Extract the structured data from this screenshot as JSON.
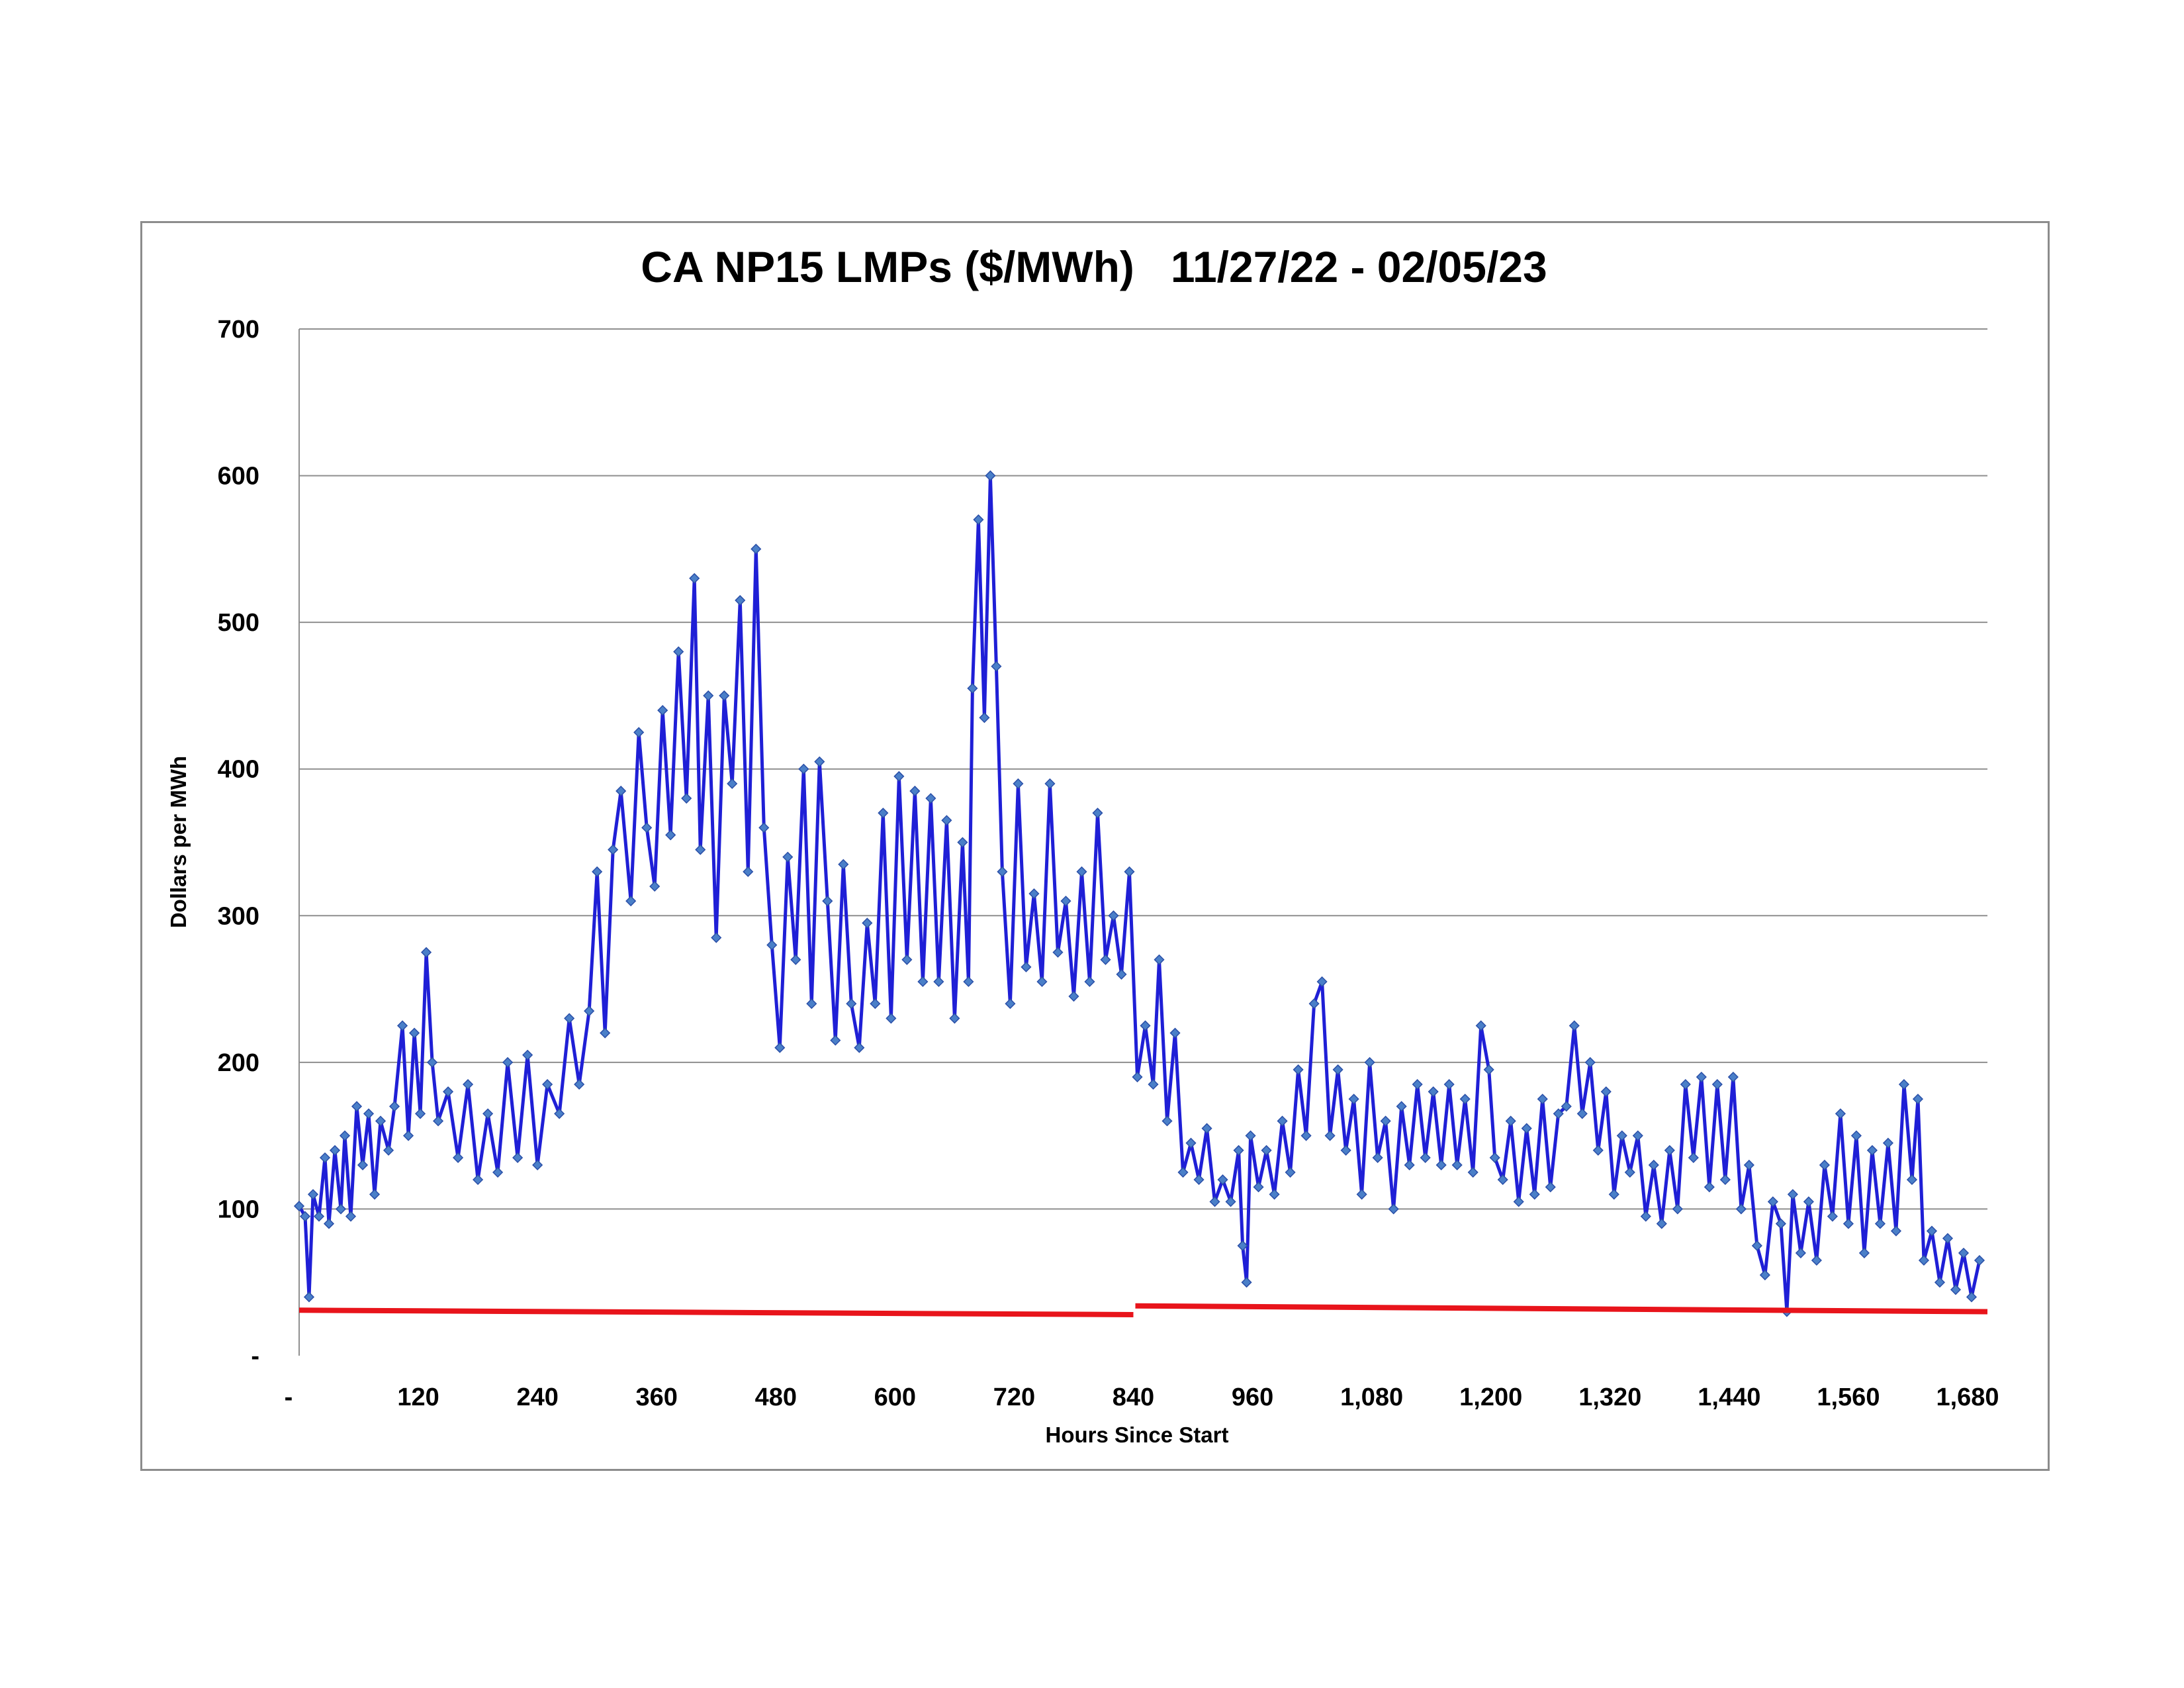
{
  "chart_data": {
    "type": "line",
    "title": "CA NP15 LMPs ($/MWh)   11/27/22 - 02/05/23",
    "xlabel": "Hours Since Start",
    "ylabel": "Dollars per MWh",
    "xlim": [
      0,
      1700
    ],
    "ylim": [
      0,
      700
    ],
    "x_ticks": [
      0,
      120,
      240,
      360,
      480,
      600,
      720,
      840,
      960,
      1080,
      1200,
      1320,
      1440,
      1560,
      1680
    ],
    "x_tick_labels": [
      "-",
      "120",
      "240",
      "360",
      "480",
      "600",
      "720",
      "840",
      "960",
      "1,080",
      "1,200",
      "1,320",
      "1,440",
      "1,560",
      "1,680"
    ],
    "y_ticks": [
      0,
      100,
      200,
      300,
      400,
      500,
      600,
      700
    ],
    "y_tick_labels": [
      "-",
      "100",
      "200",
      "300",
      "400",
      "500",
      "600",
      "700"
    ],
    "grid": "horizontal",
    "legend": "none",
    "colors": {
      "price_line": "#1f1fd6",
      "price_marker": "#4a7fc8",
      "reference_line": "#e8141b",
      "grid": "#8f8f8f",
      "frame": "#8c8c8c"
    },
    "series": [
      {
        "style": "line-with-diamond-markers",
        "color": "#1f1fd6",
        "points": [
          [
            0,
            102
          ],
          [
            6,
            95
          ],
          [
            10,
            40
          ],
          [
            14,
            110
          ],
          [
            20,
            95
          ],
          [
            26,
            135
          ],
          [
            30,
            90
          ],
          [
            36,
            140
          ],
          [
            42,
            100
          ],
          [
            46,
            150
          ],
          [
            52,
            95
          ],
          [
            58,
            170
          ],
          [
            64,
            130
          ],
          [
            70,
            165
          ],
          [
            76,
            110
          ],
          [
            82,
            160
          ],
          [
            90,
            140
          ],
          [
            96,
            170
          ],
          [
            104,
            225
          ],
          [
            110,
            150
          ],
          [
            116,
            220
          ],
          [
            122,
            165
          ],
          [
            128,
            275
          ],
          [
            134,
            200
          ],
          [
            140,
            160
          ],
          [
            150,
            180
          ],
          [
            160,
            135
          ],
          [
            170,
            185
          ],
          [
            180,
            120
          ],
          [
            190,
            165
          ],
          [
            200,
            125
          ],
          [
            210,
            200
          ],
          [
            220,
            135
          ],
          [
            230,
            205
          ],
          [
            240,
            130
          ],
          [
            250,
            185
          ],
          [
            262,
            165
          ],
          [
            272,
            230
          ],
          [
            282,
            185
          ],
          [
            292,
            235
          ],
          [
            300,
            330
          ],
          [
            308,
            220
          ],
          [
            316,
            345
          ],
          [
            324,
            385
          ],
          [
            334,
            310
          ],
          [
            342,
            425
          ],
          [
            350,
            360
          ],
          [
            358,
            320
          ],
          [
            366,
            440
          ],
          [
            374,
            355
          ],
          [
            382,
            480
          ],
          [
            390,
            380
          ],
          [
            398,
            530
          ],
          [
            404,
            345
          ],
          [
            412,
            450
          ],
          [
            420,
            285
          ],
          [
            428,
            450
          ],
          [
            436,
            390
          ],
          [
            444,
            515
          ],
          [
            452,
            330
          ],
          [
            460,
            550
          ],
          [
            468,
            360
          ],
          [
            476,
            280
          ],
          [
            484,
            210
          ],
          [
            492,
            340
          ],
          [
            500,
            270
          ],
          [
            508,
            400
          ],
          [
            516,
            240
          ],
          [
            524,
            405
          ],
          [
            532,
            310
          ],
          [
            540,
            215
          ],
          [
            548,
            335
          ],
          [
            556,
            240
          ],
          [
            564,
            210
          ],
          [
            572,
            295
          ],
          [
            580,
            240
          ],
          [
            588,
            370
          ],
          [
            596,
            230
          ],
          [
            604,
            395
          ],
          [
            612,
            270
          ],
          [
            620,
            385
          ],
          [
            628,
            255
          ],
          [
            636,
            380
          ],
          [
            644,
            255
          ],
          [
            652,
            365
          ],
          [
            660,
            230
          ],
          [
            668,
            350
          ],
          [
            674,
            255
          ],
          [
            678,
            455
          ],
          [
            684,
            570
          ],
          [
            690,
            435
          ],
          [
            696,
            600
          ],
          [
            702,
            470
          ],
          [
            708,
            330
          ],
          [
            716,
            240
          ],
          [
            724,
            390
          ],
          [
            732,
            265
          ],
          [
            740,
            315
          ],
          [
            748,
            255
          ],
          [
            756,
            390
          ],
          [
            764,
            275
          ],
          [
            772,
            310
          ],
          [
            780,
            245
          ],
          [
            788,
            330
          ],
          [
            796,
            255
          ],
          [
            804,
            370
          ],
          [
            812,
            270
          ],
          [
            820,
            300
          ],
          [
            828,
            260
          ],
          [
            836,
            330
          ],
          [
            844,
            190
          ],
          [
            852,
            225
          ],
          [
            860,
            185
          ],
          [
            866,
            270
          ],
          [
            874,
            160
          ],
          [
            882,
            220
          ],
          [
            890,
            125
          ],
          [
            898,
            145
          ],
          [
            906,
            120
          ],
          [
            914,
            155
          ],
          [
            922,
            105
          ],
          [
            930,
            120
          ],
          [
            938,
            105
          ],
          [
            946,
            140
          ],
          [
            950,
            75
          ],
          [
            954,
            50
          ],
          [
            958,
            150
          ],
          [
            966,
            115
          ],
          [
            974,
            140
          ],
          [
            982,
            110
          ],
          [
            990,
            160
          ],
          [
            998,
            125
          ],
          [
            1006,
            195
          ],
          [
            1014,
            150
          ],
          [
            1022,
            240
          ],
          [
            1030,
            255
          ],
          [
            1038,
            150
          ],
          [
            1046,
            195
          ],
          [
            1054,
            140
          ],
          [
            1062,
            175
          ],
          [
            1070,
            110
          ],
          [
            1078,
            200
          ],
          [
            1086,
            135
          ],
          [
            1094,
            160
          ],
          [
            1102,
            100
          ],
          [
            1110,
            170
          ],
          [
            1118,
            130
          ],
          [
            1126,
            185
          ],
          [
            1134,
            135
          ],
          [
            1142,
            180
          ],
          [
            1150,
            130
          ],
          [
            1158,
            185
          ],
          [
            1166,
            130
          ],
          [
            1174,
            175
          ],
          [
            1182,
            125
          ],
          [
            1190,
            225
          ],
          [
            1198,
            195
          ],
          [
            1204,
            135
          ],
          [
            1212,
            120
          ],
          [
            1220,
            160
          ],
          [
            1228,
            105
          ],
          [
            1236,
            155
          ],
          [
            1244,
            110
          ],
          [
            1252,
            175
          ],
          [
            1260,
            115
          ],
          [
            1268,
            165
          ],
          [
            1276,
            170
          ],
          [
            1284,
            225
          ],
          [
            1292,
            165
          ],
          [
            1300,
            200
          ],
          [
            1308,
            140
          ],
          [
            1316,
            180
          ],
          [
            1324,
            110
          ],
          [
            1332,
            150
          ],
          [
            1340,
            125
          ],
          [
            1348,
            150
          ],
          [
            1356,
            95
          ],
          [
            1364,
            130
          ],
          [
            1372,
            90
          ],
          [
            1380,
            140
          ],
          [
            1388,
            100
          ],
          [
            1396,
            185
          ],
          [
            1404,
            135
          ],
          [
            1412,
            190
          ],
          [
            1420,
            115
          ],
          [
            1428,
            185
          ],
          [
            1436,
            120
          ],
          [
            1444,
            190
          ],
          [
            1452,
            100
          ],
          [
            1460,
            130
          ],
          [
            1468,
            75
          ],
          [
            1476,
            55
          ],
          [
            1484,
            105
          ],
          [
            1492,
            90
          ],
          [
            1498,
            30
          ],
          [
            1504,
            110
          ],
          [
            1512,
            70
          ],
          [
            1520,
            105
          ],
          [
            1528,
            65
          ],
          [
            1536,
            130
          ],
          [
            1544,
            95
          ],
          [
            1552,
            165
          ],
          [
            1560,
            90
          ],
          [
            1568,
            150
          ],
          [
            1576,
            70
          ],
          [
            1584,
            140
          ],
          [
            1592,
            90
          ],
          [
            1600,
            145
          ],
          [
            1608,
            85
          ],
          [
            1616,
            185
          ],
          [
            1624,
            120
          ],
          [
            1630,
            175
          ],
          [
            1636,
            65
          ],
          [
            1644,
            85
          ],
          [
            1652,
            50
          ],
          [
            1660,
            80
          ],
          [
            1668,
            45
          ],
          [
            1676,
            70
          ],
          [
            1684,
            40
          ],
          [
            1692,
            65
          ]
        ]
      },
      {
        "style": "line",
        "color": "#e8141b",
        "segments": [
          [
            [
              0,
              31
            ],
            [
              840,
              28
            ]
          ],
          [
            [
              842,
              34
            ],
            [
              1700,
              30
            ]
          ]
        ]
      }
    ]
  }
}
